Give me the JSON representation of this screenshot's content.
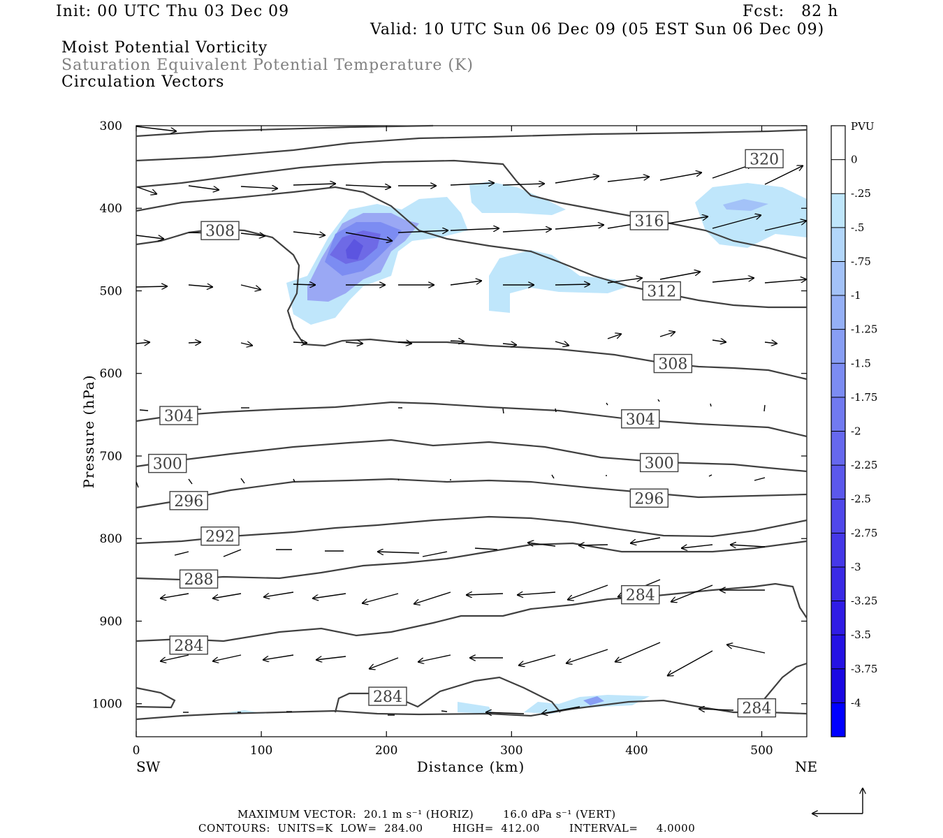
{
  "header": {
    "init": "Init: 00 UTC Thu 03 Dec 09",
    "fcst": "Fcst:   82 h",
    "valid": "Valid: 10 UTC Sun 06 Dec 09 (05 EST Sun 06 Dec 09)",
    "field1": "Moist Potential Vorticity",
    "field2": "Saturation Equivalent Potential Temperature (K)",
    "field3": "Circulation Vectors"
  },
  "footer": {
    "max_vector": "MAXIMUM VECTOR:  20.1 m s⁻¹ (HORIZ)        16.0 dPa s⁻¹ (VERT)",
    "contours": "CONTOURS:  UNITS=K  LOW=  284.00        HIGH=  412.00        INTERVAL=     4.0000"
  },
  "colors": {
    "contour": "#404040",
    "pv_light": "#bfe6fb",
    "pv_mid": "#9aa8f4",
    "pv_strong": "#6e6ae6",
    "pv_max": "#5c55e0"
  },
  "chart_data": {
    "type": "cross-section",
    "xlabel": "Distance (km)",
    "ylabel": "Pressure (hPa)",
    "x_ticks": [
      0,
      100,
      200,
      300,
      400,
      500
    ],
    "y_ticks": [
      300,
      400,
      500,
      600,
      700,
      800,
      900,
      1000
    ],
    "xlim": [
      0,
      536
    ],
    "ylim": [
      1040,
      300
    ],
    "x_end_labels": {
      "left": "SW",
      "right": "NE"
    },
    "colorbar": {
      "units": "PVU",
      "labels": [
        "0",
        "-.25",
        "-.5",
        "-.75",
        "-1",
        "-1.25",
        "-1.5",
        "-1.75",
        "-2",
        "-2.25",
        "-2.5",
        "-2.75",
        "-3",
        "-3.25",
        "-3.5",
        "-3.75",
        "-4"
      ],
      "colors": [
        "#ffffff",
        "#bfe6fb",
        "#b2d6fa",
        "#a3c2f8",
        "#95b0f6",
        "#889ef4",
        "#7c8cf2",
        "#717af0",
        "#6668ee",
        "#5b58ec",
        "#5048ea",
        "#4538e8",
        "#3a2ae6",
        "#301ce5",
        "#2512e4",
        "#1a08e3",
        "#0000ff"
      ]
    },
    "contour_labels": [
      {
        "text": "320",
        "x": 502,
        "y": 340
      },
      {
        "text": "316",
        "x": 410,
        "y": 415
      },
      {
        "text": "312",
        "x": 420,
        "y": 500
      },
      {
        "text": "308",
        "x": 67,
        "y": 427
      },
      {
        "text": "308",
        "x": 429,
        "y": 588
      },
      {
        "text": "304",
        "x": 34,
        "y": 651
      },
      {
        "text": "304",
        "x": 403,
        "y": 655
      },
      {
        "text": "300",
        "x": 25,
        "y": 709
      },
      {
        "text": "300",
        "x": 418,
        "y": 708
      },
      {
        "text": "296",
        "x": 42,
        "y": 754
      },
      {
        "text": "296",
        "x": 410,
        "y": 751
      },
      {
        "text": "292",
        "x": 67,
        "y": 797
      },
      {
        "text": "288",
        "x": 50,
        "y": 849
      },
      {
        "text": "284",
        "x": 403,
        "y": 868
      },
      {
        "text": "284",
        "x": 42,
        "y": 929
      },
      {
        "text": "284",
        "x": 201,
        "y": 991
      },
      {
        "text": "284",
        "x": 496,
        "y": 1005
      }
    ]
  }
}
